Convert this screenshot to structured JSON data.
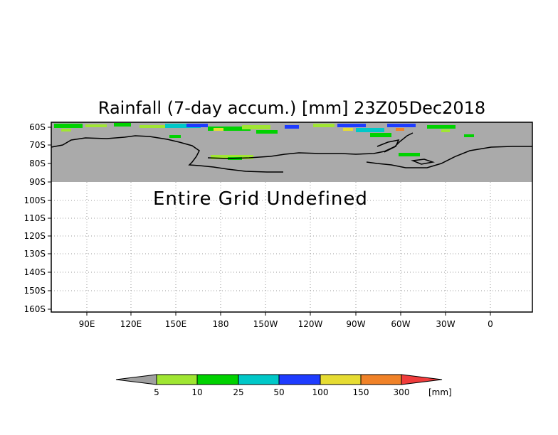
{
  "title": "Rainfall (7-day accum.) [mm] 23Z05Dec2018",
  "undefined_label": "Entire Grid Undefined",
  "y_axis": {
    "ticks": [
      "60S",
      "70S",
      "80S",
      "90S",
      "100S",
      "110S",
      "120S",
      "130S",
      "140S",
      "150S",
      "160S"
    ],
    "values": [
      -60,
      -70,
      -80,
      -90,
      -100,
      -110,
      -120,
      -130,
      -140,
      -150,
      -160
    ]
  },
  "x_axis": {
    "ticks": [
      "90E",
      "120E",
      "150E",
      "180",
      "150W",
      "120W",
      "90W",
      "60W",
      "30W",
      "0"
    ]
  },
  "legend": {
    "unit": "[mm]",
    "labels": [
      "5",
      "10",
      "25",
      "50",
      "100",
      "150",
      "300"
    ],
    "colors": {
      "below": "#a0a0a0",
      "bins": [
        "#a0e632",
        "#00d200",
        "#00c8c8",
        "#1e3cff",
        "#e6dc32",
        "#f08228"
      ],
      "above": "#f03c3c"
    }
  },
  "colors": {
    "undefined_fill": "#aaaaaa",
    "grid": "#999999",
    "coastline": "#000000"
  }
}
